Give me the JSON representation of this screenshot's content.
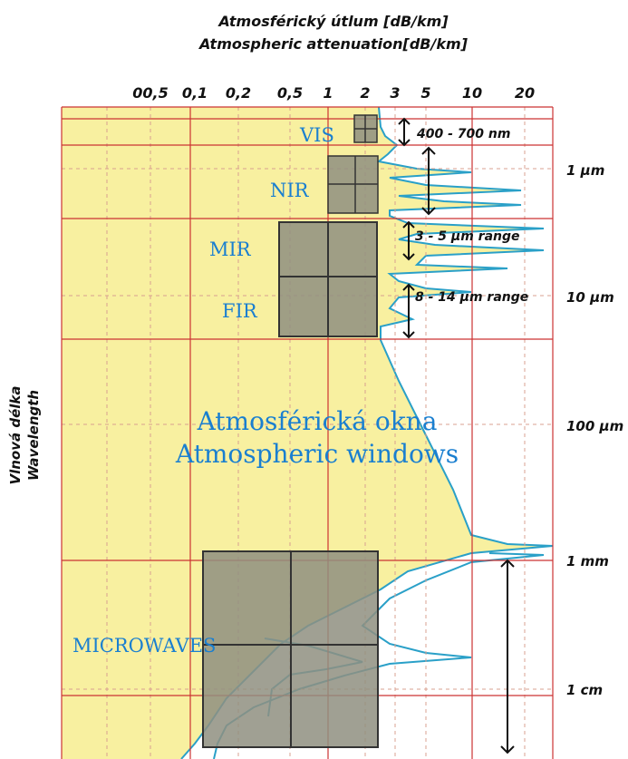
{
  "title": {
    "line1": "Atmosférický útlum [dB/km]",
    "line2": "Atmospheric attenuation[dB/km]"
  },
  "x_ticks": [
    "00,5",
    "0,1",
    "0,2",
    "0,5",
    "1",
    "2",
    "3",
    "5",
    "10",
    "20"
  ],
  "y_axis": {
    "line1": "Vlnová délka",
    "line2": "Wavelength"
  },
  "y_ticks": [
    "1 µm",
    "10 µm",
    "100 µm",
    "1 mm",
    "1 cm"
  ],
  "bands": {
    "vis": "VIS",
    "nir": "NIR",
    "mir": "MIR",
    "fir": "FIR",
    "microwaves": "MICROWAVES"
  },
  "windows": {
    "line1": "Atmosférická okna",
    "line2": "Atmospheric windows"
  },
  "annotations": {
    "vis_range": "400 - 700 nm",
    "mir_range": "3 - 5 µm range",
    "fir_range": "8 - 14 µm range"
  },
  "colors": {
    "background": "#f8f0a0",
    "band_box": "#8f8f80",
    "band_text": "#1a7fd0",
    "absorption_fill": "#ffffff",
    "absorption_line": "#2aa0c8",
    "major_grid": "#cc3333",
    "minor_grid": "#d9a090"
  }
}
